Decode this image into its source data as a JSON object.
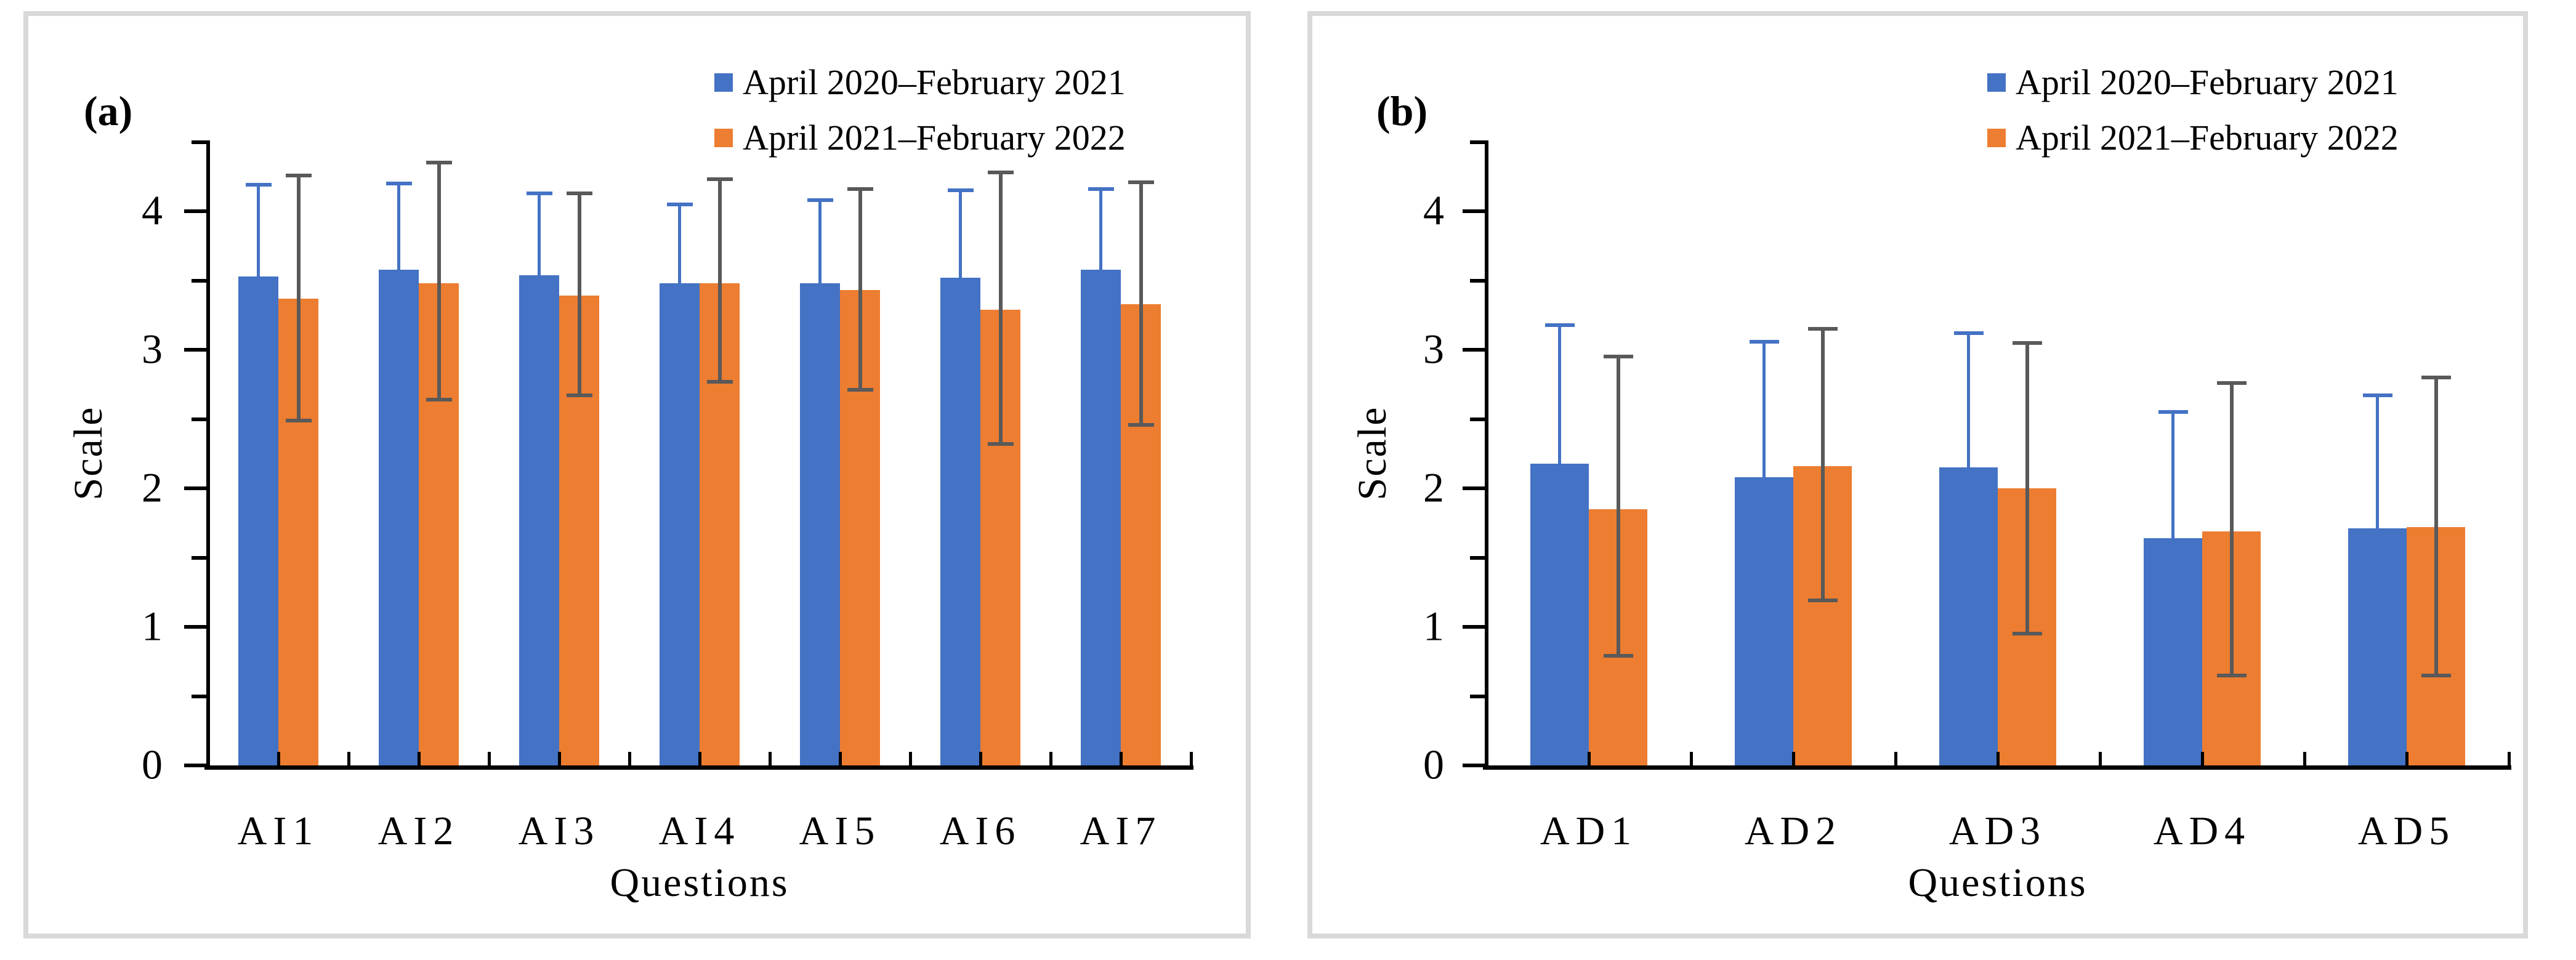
{
  "figure": {
    "background": "#ffffff",
    "panel_border_color": "#d9d9d9"
  },
  "colors": {
    "series_blue": "#4472C4",
    "series_orange": "#ED7D31",
    "error_bar_gray": "#595959",
    "axis_black": "#000000"
  },
  "panels": [
    {
      "label": "(a)"
    },
    {
      "label": "(b)"
    }
  ],
  "legend": {
    "position": "top-right",
    "items": [
      {
        "label": "April 2020–February 2021",
        "color": "#4472C4"
      },
      {
        "label": "April 2021–February 2022",
        "color": "#ED7D31"
      }
    ]
  },
  "chart_data": [
    {
      "type": "bar",
      "panel": "(a)",
      "categories": [
        "AI1",
        "AI2",
        "AI3",
        "AI4",
        "AI5",
        "AI6",
        "AI7"
      ],
      "series": [
        {
          "name": "April 2020–February 2021",
          "color": "#4472C4",
          "values": [
            3.53,
            3.58,
            3.54,
            3.48,
            3.48,
            3.52,
            3.58
          ],
          "error_high": [
            4.19,
            4.2,
            4.13,
            4.05,
            4.08,
            4.15,
            4.16
          ],
          "error_draw": "upper",
          "error_color": "#4472C4"
        },
        {
          "name": "April 2021–February 2022",
          "color": "#ED7D31",
          "values": [
            3.37,
            3.48,
            3.39,
            3.48,
            3.43,
            3.29,
            3.33
          ],
          "error_high": [
            4.26,
            4.35,
            4.13,
            4.23,
            4.16,
            4.28,
            4.21
          ],
          "error_low": [
            2.49,
            2.64,
            2.67,
            2.77,
            2.71,
            2.32,
            2.46
          ],
          "error_draw": "both",
          "error_color": "#595959"
        }
      ],
      "xlabel": "Questions",
      "ylabel": "Scale",
      "ylim": [
        0,
        4.5
      ],
      "yticks": [
        0,
        1,
        2,
        3,
        4
      ],
      "minor_tick_step": 0.5,
      "grid": false,
      "legend_position": "top-right"
    },
    {
      "type": "bar",
      "panel": "(b)",
      "categories": [
        "AD1",
        "AD2",
        "AD3",
        "AD4",
        "AD5"
      ],
      "series": [
        {
          "name": "April 2020–February 2021",
          "color": "#4472C4",
          "values": [
            2.18,
            2.08,
            2.15,
            1.64,
            1.71
          ],
          "error_high": [
            3.18,
            3.06,
            3.12,
            2.55,
            2.67
          ],
          "error_draw": "upper",
          "error_color": "#4472C4"
        },
        {
          "name": "April 2021–February 2022",
          "color": "#ED7D31",
          "values": [
            1.85,
            2.16,
            2.0,
            1.69,
            1.72
          ],
          "error_high": [
            2.95,
            3.15,
            3.05,
            2.76,
            2.8
          ],
          "error_low": [
            0.79,
            1.19,
            0.95,
            0.65,
            0.65
          ],
          "error_draw": "both",
          "error_color": "#595959"
        }
      ],
      "xlabel": "Questions",
      "ylabel": "Scale",
      "ylim": [
        0,
        4.5
      ],
      "yticks": [
        0,
        1,
        2,
        3,
        4
      ],
      "minor_tick_step": 0.5,
      "grid": false,
      "legend_position": "top-right"
    }
  ]
}
